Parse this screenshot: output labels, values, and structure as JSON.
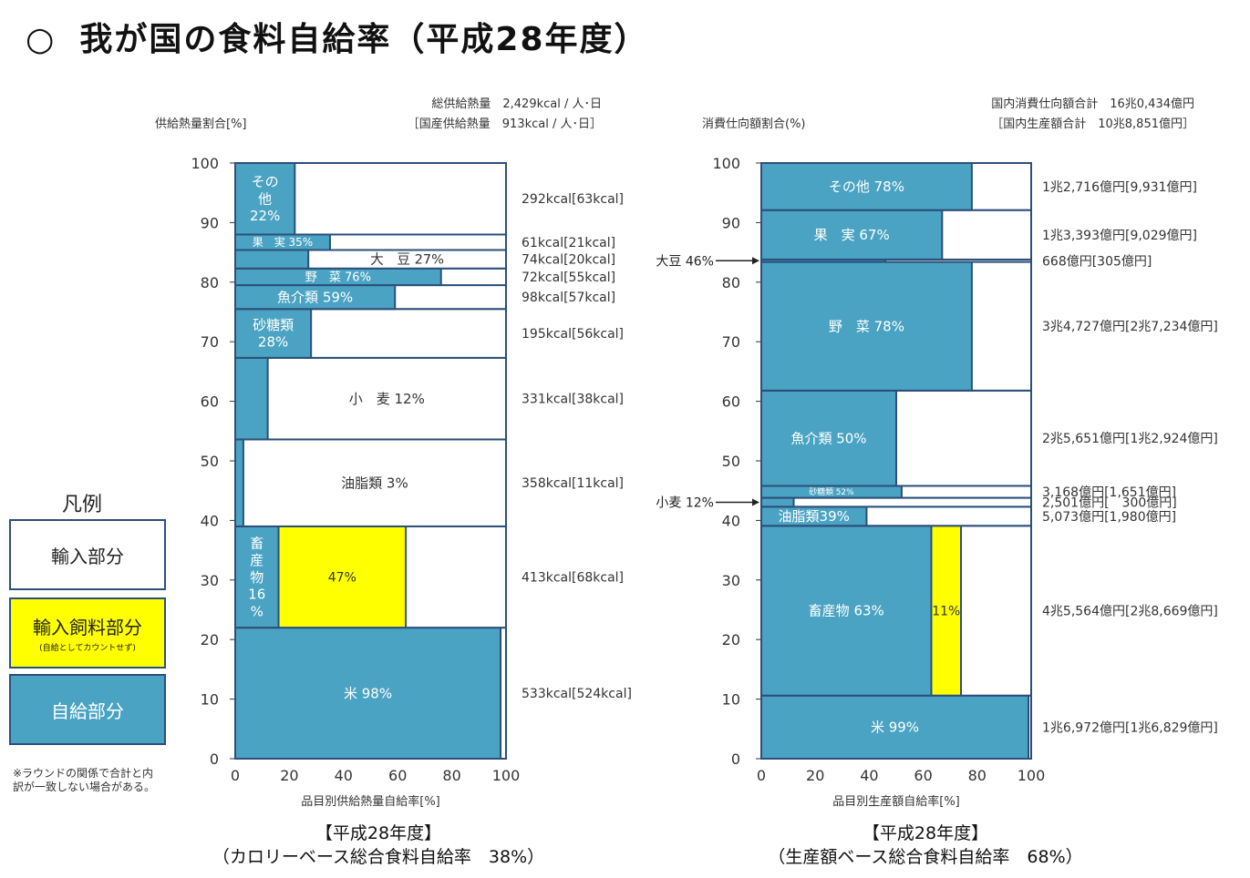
{
  "title": {
    "symbol": "○",
    "text": "我が国の食料自給率（平成28年度）"
  },
  "legend": {
    "title": "凡例",
    "import": "輸入部分",
    "feed": "輸入飼料部分",
    "feed_note": "(自給としてカウントせず)",
    "self": "自給部分"
  },
  "footnote": "※ラウンドの関係で合計と内訳が一致しない場合がある。",
  "colors": {
    "self": "#4ba3c3",
    "feed": "#ffff00",
    "import": "#ffffff",
    "border": "#2b4f7a"
  },
  "captions": {
    "left_year": "【平成28年度】",
    "left_total": "（カロリーベース総合食料自給率　38%）",
    "right_year": "【平成28年度】",
    "right_total": "（生産額ベース総合食料自給率　68%）"
  },
  "chart_data": [
    {
      "type": "bar",
      "subtype": "mekko",
      "ylabel": "供給熱量割合[%]",
      "xlabel": "品目別供給熱量自給率[%]",
      "header": [
        "総供給熱量　2,429kcal / 人･日",
        "［国産供給熱量　913kcal / 人･日］"
      ],
      "xlim": [
        0,
        100
      ],
      "ylim": [
        0,
        100
      ],
      "xticks": [
        0,
        20,
        40,
        60,
        80,
        100
      ],
      "yticks": [
        0,
        10,
        20,
        30,
        40,
        50,
        60,
        70,
        80,
        90,
        100
      ],
      "items": [
        {
          "name": "米",
          "label": "米 98%",
          "y0": 0,
          "y1": 22,
          "self": 98,
          "value": "533kcal[524kcal]"
        },
        {
          "name": "畜産物",
          "label": "畜\n産\n物\n16\n%",
          "y0": 22,
          "y1": 39,
          "self": 16,
          "feed": 47,
          "feed_label": "47%",
          "value": "413kcal[68kcal]"
        },
        {
          "name": "油脂類",
          "label": "油脂類 3%",
          "y0": 39,
          "y1": 53.6,
          "self": 3,
          "value": "358kcal[11kcal]"
        },
        {
          "name": "小麦",
          "label": "小　麦 12%",
          "y0": 53.6,
          "y1": 67.3,
          "self": 12,
          "value": "331kcal[38kcal]"
        },
        {
          "name": "砂糖類",
          "label": "砂糖類\n28%",
          "y0": 67.3,
          "y1": 75.5,
          "self": 28,
          "value": "195kcal[56kcal]"
        },
        {
          "name": "魚介類",
          "label": "魚介類 59%",
          "y0": 75.5,
          "y1": 79.5,
          "self": 59,
          "value": "98kcal[57kcal]"
        },
        {
          "name": "野菜",
          "label": "野　菜 76%",
          "y0": 79.5,
          "y1": 82.3,
          "self": 76,
          "value": "72kcal[55kcal]"
        },
        {
          "name": "大豆",
          "label": "大　豆 27%",
          "y0": 82.3,
          "y1": 85.4,
          "self": 27,
          "value": "74kcal[20kcal]"
        },
        {
          "name": "果実",
          "label": "果　実 35%",
          "y0": 85.4,
          "y1": 88.0,
          "self": 35,
          "value": "61kcal[21kcal]"
        },
        {
          "name": "その他",
          "label": "その\n他\n22%",
          "y0": 88.0,
          "y1": 100,
          "self": 22,
          "value": "292kcal[63kcal]"
        }
      ]
    },
    {
      "type": "bar",
      "subtype": "mekko",
      "ylabel": "消費仕向額割合(%)",
      "xlabel": "品目別生産額自給率[%]",
      "header": [
        "国内消費仕向額合計　16兆0,434億円",
        "［国内生産額合計　10兆8,851億円］"
      ],
      "xlim": [
        0,
        100
      ],
      "ylim": [
        0,
        100
      ],
      "xticks": [
        0,
        20,
        40,
        60,
        80,
        100
      ],
      "yticks": [
        0,
        10,
        20,
        30,
        40,
        50,
        60,
        70,
        80,
        90,
        100
      ],
      "items": [
        {
          "name": "米",
          "label": "米 99%",
          "y0": 0,
          "y1": 10.6,
          "self": 99,
          "value": "1兆6,972億円[1兆6,829億円]"
        },
        {
          "name": "畜産物",
          "label": "畜産物 63%",
          "y0": 10.6,
          "y1": 39.1,
          "self": 63,
          "feed": 11,
          "feed_label": "11%",
          "value": "4兆5,564億円[2兆8,669億円]"
        },
        {
          "name": "油脂類",
          "label": "油脂類39%",
          "y0": 39.1,
          "y1": 42.3,
          "self": 39,
          "value": "5,073億円[1,980億円]"
        },
        {
          "name": "小麦",
          "label": "",
          "y0": 42.3,
          "y1": 43.8,
          "self": 12,
          "value": "2,501億円[　300億円]",
          "callout": "小麦 12%"
        },
        {
          "name": "砂糖類",
          "label": "砂糖類 52%",
          "y0": 43.8,
          "y1": 45.8,
          "self": 52,
          "value": "3,168億円[1,651億円]"
        },
        {
          "name": "魚介類",
          "label": "魚介類 50%",
          "y0": 45.8,
          "y1": 61.8,
          "self": 50,
          "value": "2兆5,651億円[1兆2,924億円]"
        },
        {
          "name": "野菜",
          "label": "野　菜 78%",
          "y0": 61.8,
          "y1": 83.4,
          "self": 78,
          "value": "3兆4,727億円[2兆7,234億円]"
        },
        {
          "name": "大豆",
          "label": "",
          "y0": 83.4,
          "y1": 83.8,
          "self": 46,
          "value": "668億円[305億円]",
          "callout": "大豆 46%"
        },
        {
          "name": "果実",
          "label": "果　実 67%",
          "y0": 83.8,
          "y1": 92.1,
          "self": 67,
          "value": "1兆3,393億円[9,029億円]"
        },
        {
          "name": "その他",
          "label": "その他 78%",
          "y0": 92.1,
          "y1": 100,
          "self": 78,
          "value": "1兆2,716億円[9,931億円]"
        }
      ]
    }
  ]
}
